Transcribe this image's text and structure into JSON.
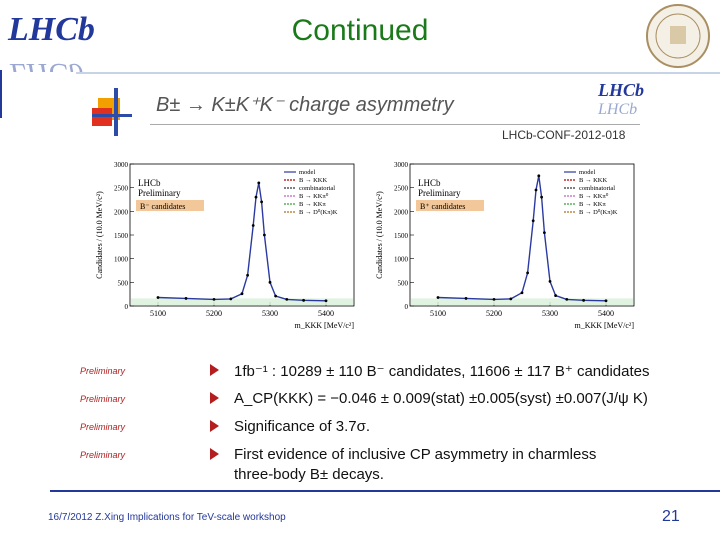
{
  "header": {
    "title": "Continued"
  },
  "logos": {
    "lhcb": "LHCb",
    "university_seal": "SYRACUSE UNIVERSITY FOUNDED 1870",
    "small_lhcb": "LHCb"
  },
  "figure": {
    "title": "B± → K±K⁺K⁻ charge asymmetry",
    "conf_ref": "LHCb-CONF-2012-018",
    "plots": [
      {
        "label": "B⁻ candidates",
        "collab": "LHCb",
        "status": "Preliminary"
      },
      {
        "label": "B⁺ candidates",
        "collab": "LHCb",
        "status": "Preliminary"
      }
    ]
  },
  "chart_data": [
    {
      "type": "line",
      "title": "B⁻ candidates",
      "xlabel": "m_KKK [MeV/c²]",
      "ylabel": "Candidates / (10.0 MeV/c²)",
      "x_ticks": [
        "5100",
        "5200",
        "5300",
        "5400"
      ],
      "y_ticks": [
        "0",
        "500",
        "1000",
        "1500",
        "2000",
        "2500",
        "3000"
      ],
      "xlim": [
        5050,
        5450
      ],
      "ylim": [
        0,
        3000
      ],
      "legend": [
        "model",
        "B → KKK",
        "combinatorial",
        "B → KKπ⁰",
        "B → KKπ",
        "B → D⁰(Kπ)K"
      ],
      "series": [
        {
          "name": "model",
          "x": [
            5100,
            5150,
            5200,
            5230,
            5250,
            5260,
            5270,
            5275,
            5280,
            5285,
            5290,
            5300,
            5310,
            5330,
            5360,
            5400
          ],
          "values": [
            180,
            160,
            140,
            150,
            260,
            650,
            1700,
            2300,
            2600,
            2200,
            1500,
            500,
            210,
            140,
            120,
            110
          ]
        }
      ]
    },
    {
      "type": "line",
      "title": "B⁺ candidates",
      "xlabel": "m_KKK [MeV/c²]",
      "ylabel": "Candidates / (10.0 MeV/c²)",
      "x_ticks": [
        "5100",
        "5200",
        "5300",
        "5400"
      ],
      "y_ticks": [
        "0",
        "500",
        "1000",
        "1500",
        "2000",
        "2500",
        "3000"
      ],
      "xlim": [
        5050,
        5450
      ],
      "ylim": [
        0,
        3000
      ],
      "legend": [
        "model",
        "B → KKK",
        "combinatorial",
        "B → KKπ⁰",
        "B → KKπ",
        "B → D⁰(Kπ)K"
      ],
      "series": [
        {
          "name": "model",
          "x": [
            5100,
            5150,
            5200,
            5230,
            5250,
            5260,
            5270,
            5275,
            5280,
            5285,
            5290,
            5300,
            5310,
            5330,
            5360,
            5400
          ],
          "values": [
            180,
            160,
            140,
            150,
            280,
            700,
            1800,
            2450,
            2750,
            2300,
            1550,
            520,
            220,
            140,
            120,
            110
          ]
        }
      ]
    }
  ],
  "bullets": [
    {
      "pre": "Preliminary",
      "text": "1fb⁻¹ : 10289 ± 110 B⁻ candidates, 11606 ± 117 B⁺ candidates"
    },
    {
      "pre": "Preliminary",
      "text": "A_CP(KKK) = −0.046 ± 0.009(stat) ±0.005(syst) ±0.007(J/ψ K)"
    },
    {
      "pre": "Preliminary",
      "text": "Significance of 3.7σ."
    },
    {
      "pre": "Preliminary",
      "text": "First evidence of inclusive CP asymmetry in charmless"
    }
  ],
  "bullet_cont": "three-body B± decays.",
  "footer": {
    "text": "16/7/2012 Z.Xing Implications for TeV-scale workshop",
    "page": "21"
  }
}
